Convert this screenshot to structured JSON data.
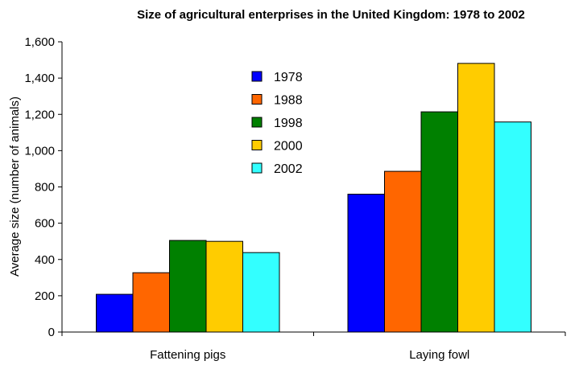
{
  "chart_data": {
    "type": "bar",
    "title": "Size of agricultural enterprises in the United Kingdom: 1978 to 2002",
    "xlabel": "",
    "ylabel": "Average size (number of animals)",
    "categories": [
      "Fattening pigs",
      "Laying fowl"
    ],
    "series": [
      {
        "name": "1978",
        "color": "#0000ff",
        "values": [
          208,
          760
        ]
      },
      {
        "name": "1988",
        "color": "#ff6600",
        "values": [
          327,
          886
        ]
      },
      {
        "name": "1998",
        "color": "#008000",
        "values": [
          505,
          1214
        ]
      },
      {
        "name": "2000",
        "color": "#ffcc00",
        "values": [
          500,
          1481
        ]
      },
      {
        "name": "2002",
        "color": "#33ffff",
        "values": [
          438,
          1158
        ]
      }
    ],
    "yticks": [
      "0",
      "200",
      "400",
      "600",
      "800",
      "1,000",
      "1,200",
      "1,400",
      "1,600"
    ],
    "ylim": [
      0,
      1600
    ],
    "grid": false,
    "legend_position": "top-center"
  }
}
